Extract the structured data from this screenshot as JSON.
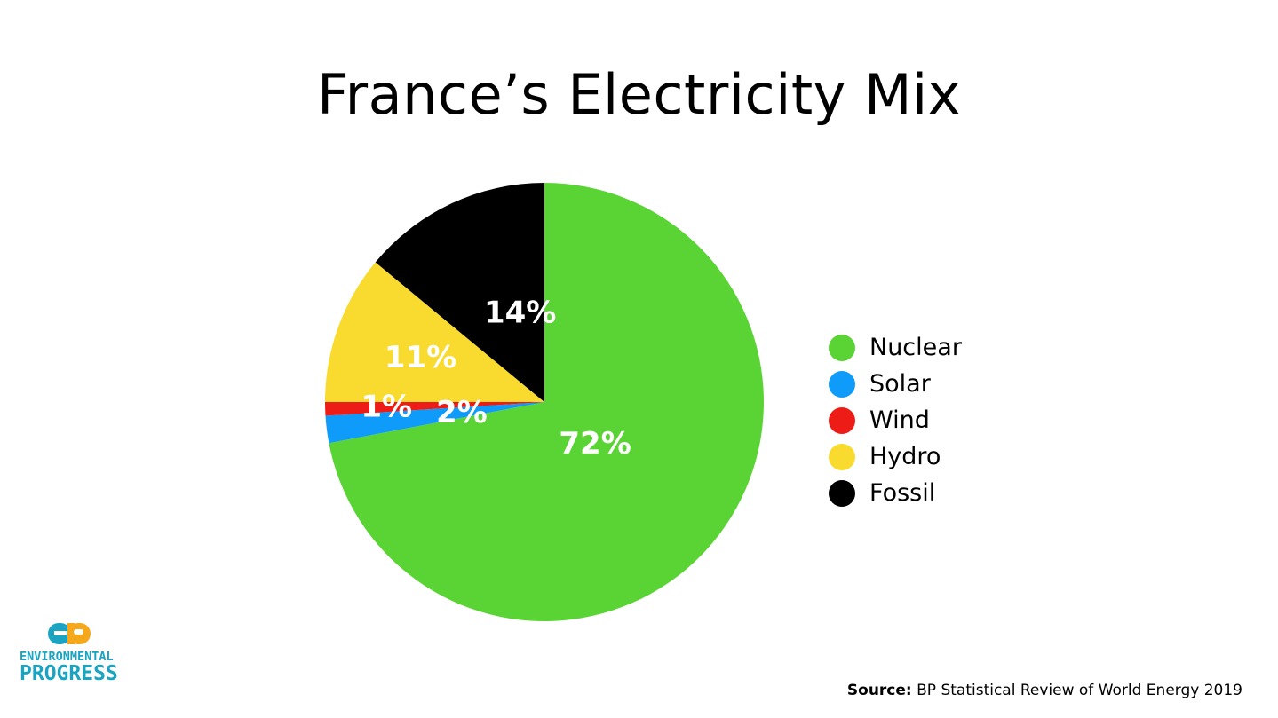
{
  "chart_data": {
    "type": "pie",
    "title": "France’s Electricity Mix",
    "slices": [
      {
        "name": "Nuclear",
        "value": 72,
        "label": "72%",
        "color": "#5ad434"
      },
      {
        "name": "Solar",
        "value": 2,
        "label": "2%",
        "color": "#0f9bfa"
      },
      {
        "name": "Wind",
        "value": 1,
        "label": "1%",
        "color": "#ee1c17"
      },
      {
        "name": "Hydro",
        "value": 11,
        "label": "11%",
        "color": "#f8db2e"
      },
      {
        "name": "Fossil",
        "value": 14,
        "label": "14%",
        "color": "#000000"
      }
    ],
    "legend_position": "right"
  },
  "logo": {
    "line1": "ENVIRONMENTAL",
    "line2": "PROGRESS",
    "colors": {
      "teal": "#1aa4c2",
      "orange": "#f5a81c"
    }
  },
  "source": {
    "prefix": "Source:",
    "text": "BP Statistical Review of World Energy 2019"
  }
}
